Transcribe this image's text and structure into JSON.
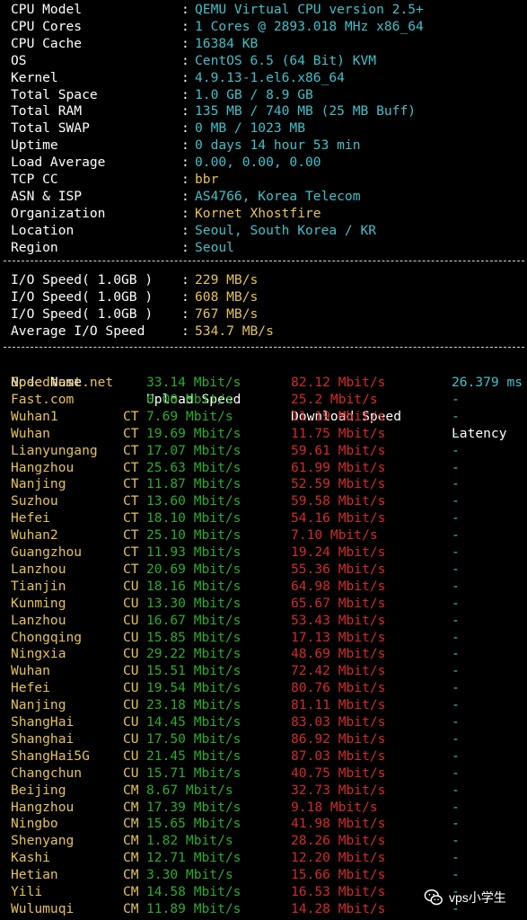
{
  "sysinfo": [
    {
      "label": "CPU Model",
      "value": "QEMU Virtual CPU version 2.5+",
      "color": "#3fc1c9"
    },
    {
      "label": "CPU Cores",
      "value": "1 Cores @ 2893.018 MHz x86_64",
      "color": "#3fc1c9"
    },
    {
      "label": "CPU Cache",
      "value": "16384 KB",
      "color": "#3fc1c9"
    },
    {
      "label": "OS",
      "value": "CentOS 6.5 (64 Bit) KVM",
      "color": "#3fc1c9"
    },
    {
      "label": "Kernel",
      "value": "4.9.13-1.el6.x86_64",
      "color": "#3fc1c9"
    },
    {
      "label": "Total Space",
      "value": "1.0 GB / 8.9 GB",
      "color": "#3fc1c9"
    },
    {
      "label": "Total RAM",
      "value": "135 MB / 740 MB (25 MB Buff)",
      "color": "#3fc1c9"
    },
    {
      "label": "Total SWAP",
      "value": "0 MB / 1023 MB",
      "color": "#3fc1c9"
    },
    {
      "label": "Uptime",
      "value": "0 days 14 hour 53 min",
      "color": "#3fc1c9"
    },
    {
      "label": "Load Average",
      "value": "0.00, 0.00, 0.00",
      "color": "#3fc1c9"
    },
    {
      "label": "TCP CC",
      "value": "bbr",
      "color": "#e5c454"
    },
    {
      "label": "ASN & ISP",
      "value": "AS4766, Korea Telecom",
      "color": "#3fc1c9"
    },
    {
      "label": "Organization",
      "value": "Kornet Xhostfire",
      "color": "#e5c454"
    },
    {
      "label": "Location",
      "value": "Seoul, South Korea / KR",
      "color": "#3fc1c9"
    },
    {
      "label": "Region",
      "value": "Seoul",
      "color": "#3fc1c9"
    }
  ],
  "io": [
    {
      "label": "I/O Speed( 1.0GB )",
      "value": "229 MB/s"
    },
    {
      "label": "I/O Speed( 1.0GB )",
      "value": "608 MB/s"
    },
    {
      "label": "I/O Speed( 1.0GB )",
      "value": "767 MB/s"
    },
    {
      "label": "Average I/O Speed",
      "value": "534.7 MB/s"
    }
  ],
  "speed_header": {
    "name": "Node Name",
    "upload": "Upload Speed",
    "download": "Download Speed",
    "latency": "Latency"
  },
  "speed_rows": [
    {
      "name": "Speedtest.net",
      "isp": "",
      "upload": "33.14 Mbit/s",
      "download": "82.12 Mbit/s",
      "latency": "26.379 ms"
    },
    {
      "name": "Fast.com",
      "isp": "",
      "upload": "0.00 Mbit/s",
      "download": "25.2 Mbit/s",
      "latency": "-"
    },
    {
      "name": "Wuhan1",
      "isp": "CT",
      "upload": "7.69 Mbit/s",
      "download": "11.19 Mbit/s",
      "latency": "-"
    },
    {
      "name": "Wuhan",
      "isp": "CT",
      "upload": "19.69 Mbit/s",
      "download": "11.75 Mbit/s",
      "latency": "-"
    },
    {
      "name": "Lianyungang",
      "isp": "CT",
      "upload": "17.07 Mbit/s",
      "download": "59.61 Mbit/s",
      "latency": "-"
    },
    {
      "name": "Hangzhou",
      "isp": "CT",
      "upload": "25.63 Mbit/s",
      "download": "61.99 Mbit/s",
      "latency": "-"
    },
    {
      "name": "Nanjing",
      "isp": "CT",
      "upload": "11.87 Mbit/s",
      "download": "52.59 Mbit/s",
      "latency": "-"
    },
    {
      "name": "Suzhou",
      "isp": "CT",
      "upload": "13.60 Mbit/s",
      "download": "59.58 Mbit/s",
      "latency": "-"
    },
    {
      "name": "Hefei",
      "isp": "CT",
      "upload": "18.10 Mbit/s",
      "download": "54.16 Mbit/s",
      "latency": "-"
    },
    {
      "name": "Wuhan2",
      "isp": "CT",
      "upload": "25.10 Mbit/s",
      "download": "7.10 Mbit/s",
      "latency": "-"
    },
    {
      "name": "Guangzhou",
      "isp": "CT",
      "upload": "11.93 Mbit/s",
      "download": "19.24 Mbit/s",
      "latency": "-"
    },
    {
      "name": "Lanzhou",
      "isp": "CT",
      "upload": "20.69 Mbit/s",
      "download": "55.36 Mbit/s",
      "latency": "-"
    },
    {
      "name": "Tianjin",
      "isp": "CU",
      "upload": "18.16 Mbit/s",
      "download": "64.98 Mbit/s",
      "latency": "-"
    },
    {
      "name": "Kunming",
      "isp": "CU",
      "upload": "13.30 Mbit/s",
      "download": "65.67 Mbit/s",
      "latency": "-"
    },
    {
      "name": "Lanzhou",
      "isp": "CU",
      "upload": "16.67 Mbit/s",
      "download": "53.43 Mbit/s",
      "latency": "-"
    },
    {
      "name": "Chongqing",
      "isp": "CU",
      "upload": "15.85 Mbit/s",
      "download": "17.13 Mbit/s",
      "latency": "-"
    },
    {
      "name": "Ningxia",
      "isp": "CU",
      "upload": "29.22 Mbit/s",
      "download": "48.69 Mbit/s",
      "latency": "-"
    },
    {
      "name": "Wuhan",
      "isp": "CU",
      "upload": "15.51 Mbit/s",
      "download": "72.42 Mbit/s",
      "latency": "-"
    },
    {
      "name": "Hefei",
      "isp": "CU",
      "upload": "19.54 Mbit/s",
      "download": "80.76 Mbit/s",
      "latency": "-"
    },
    {
      "name": "Nanjing",
      "isp": "CU",
      "upload": "23.18 Mbit/s",
      "download": "81.11 Mbit/s",
      "latency": "-"
    },
    {
      "name": "ShangHai",
      "isp": "CU",
      "upload": "14.45 Mbit/s",
      "download": "83.03 Mbit/s",
      "latency": "-"
    },
    {
      "name": "Shanghai",
      "isp": "CU",
      "upload": "17.50 Mbit/s",
      "download": "86.92 Mbit/s",
      "latency": "-"
    },
    {
      "name": "ShangHai5G",
      "isp": "CU",
      "upload": "21.45 Mbit/s",
      "download": "87.03 Mbit/s",
      "latency": "-"
    },
    {
      "name": "Changchun",
      "isp": "CU",
      "upload": "15.71 Mbit/s",
      "download": "40.75 Mbit/s",
      "latency": "-"
    },
    {
      "name": "Beijing",
      "isp": "CM",
      "upload": "8.67 Mbit/s",
      "download": "32.73 Mbit/s",
      "latency": "-"
    },
    {
      "name": "Hangzhou",
      "isp": "CM",
      "upload": "17.39 Mbit/s",
      "download": "9.18 Mbit/s",
      "latency": "-"
    },
    {
      "name": "Ningbo",
      "isp": "CM",
      "upload": "15.65 Mbit/s",
      "download": "41.98 Mbit/s",
      "latency": "-"
    },
    {
      "name": "Shenyang",
      "isp": "CM",
      "upload": "1.82 Mbit/s",
      "download": "28.26 Mbit/s",
      "latency": "-"
    },
    {
      "name": "Kashi",
      "isp": "CM",
      "upload": "12.71 Mbit/s",
      "download": "12.20 Mbit/s",
      "latency": "-"
    },
    {
      "name": "Hetian",
      "isp": "CM",
      "upload": "3.30 Mbit/s",
      "download": "15.66 Mbit/s",
      "latency": "-"
    },
    {
      "name": "Yili",
      "isp": "CM",
      "upload": "14.58 Mbit/s",
      "download": "16.53 Mbit/s",
      "latency": "-"
    },
    {
      "name": "Wulumuqi",
      "isp": "CM",
      "upload": "11.89 Mbit/s",
      "download": "14.28 Mbit/s",
      "latency": "-"
    }
  ],
  "colors": {
    "cyan": "#3fc1c9",
    "yellow": "#e5c454",
    "green": "#2cac2c",
    "red": "#d42a2a",
    "background": "#000000"
  },
  "watermark": {
    "text": "vps小学生",
    "icon": "wechat-icon"
  }
}
